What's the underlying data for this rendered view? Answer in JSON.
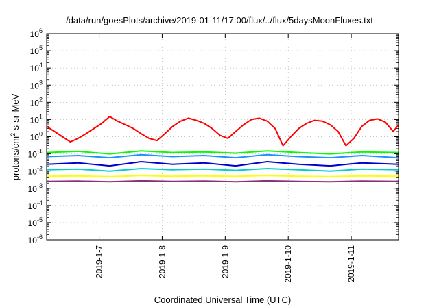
{
  "chart_data": {
    "type": "line",
    "title": "/data/run/goesPlots/archive/2019-01-11/17:00/flux/../flux/5daysMoonFluxes.txt",
    "xlabel": "Coordinated Universal Time (UTC)",
    "ylabel": {
      "prefix": "protons/cm",
      "sup": "2",
      "suffix": "-s-sr-MeV"
    },
    "y_scale": "log",
    "ylim": [
      1e-06,
      1000000.0
    ],
    "y_ticks": [
      {
        "base": "10",
        "exp": "-6",
        "value": 1e-06
      },
      {
        "base": "10",
        "exp": "-5",
        "value": 1e-05
      },
      {
        "base": "10",
        "exp": "-4",
        "value": 0.0001
      },
      {
        "base": "10",
        "exp": "-3",
        "value": 0.001
      },
      {
        "base": "10",
        "exp": "-2",
        "value": 0.01
      },
      {
        "base": "10",
        "exp": "-1",
        "value": 0.1
      },
      {
        "base": "10",
        "exp": "0",
        "value": 1
      },
      {
        "base": "10",
        "exp": "1",
        "value": 10
      },
      {
        "base": "10",
        "exp": "2",
        "value": 100
      },
      {
        "base": "10",
        "exp": "3",
        "value": 1000
      },
      {
        "base": "10",
        "exp": "4",
        "value": 10000
      },
      {
        "base": "10",
        "exp": "5",
        "value": 100000
      },
      {
        "base": "10",
        "exp": "6",
        "value": 1000000
      }
    ],
    "xlim": [
      "2019-01-06T04:00",
      "2019-01-11T18:00"
    ],
    "x_ticks": [
      {
        "label": "2019-1-7",
        "value": "2019-01-07T00:00"
      },
      {
        "label": "2019-1-8",
        "value": "2019-01-08T00:00"
      },
      {
        "label": "2019-1-9",
        "value": "2019-01-09T00:00"
      },
      {
        "label": "2019-1-10",
        "value": "2019-01-10T00:00"
      },
      {
        "label": "2019-1-11",
        "value": "2019-01-11T00:00"
      }
    ],
    "grid": true,
    "series": [
      {
        "color": "#ff0000",
        "x": [
          "2019-01-06T04:00",
          "2019-01-06T07:00",
          "2019-01-06T10:00",
          "2019-01-06T13:00",
          "2019-01-06T16:00",
          "2019-01-06T19:00",
          "2019-01-06T22:00",
          "2019-01-07T01:00",
          "2019-01-07T04:00",
          "2019-01-07T07:00",
          "2019-01-07T10:00",
          "2019-01-07T13:00",
          "2019-01-07T16:00",
          "2019-01-07T19:00",
          "2019-01-07T22:00",
          "2019-01-08T01:00",
          "2019-01-08T04:00",
          "2019-01-08T07:00",
          "2019-01-08T10:00",
          "2019-01-08T13:00",
          "2019-01-08T16:00",
          "2019-01-08T19:00",
          "2019-01-08T22:00",
          "2019-01-09T01:00",
          "2019-01-09T04:00",
          "2019-01-09T07:00",
          "2019-01-09T10:00",
          "2019-01-09T13:00",
          "2019-01-09T16:00",
          "2019-01-09T19:00",
          "2019-01-09T22:00",
          "2019-01-10T01:00",
          "2019-01-10T04:00",
          "2019-01-10T07:00",
          "2019-01-10T10:00",
          "2019-01-10T13:00",
          "2019-01-10T16:00",
          "2019-01-10T19:00",
          "2019-01-10T22:00",
          "2019-01-11T01:00",
          "2019-01-11T04:00",
          "2019-01-11T07:00",
          "2019-01-11T10:00",
          "2019-01-11T13:00",
          "2019-01-11T16:00",
          "2019-01-11T18:00"
        ],
        "values": [
          4,
          2,
          1,
          0.5,
          0.8,
          1.5,
          3,
          6,
          15,
          8,
          5,
          3,
          1.5,
          0.8,
          0.6,
          1.5,
          4,
          8,
          12,
          9,
          6,
          3,
          1.2,
          0.8,
          2,
          5,
          10,
          12,
          8,
          3,
          0.3,
          1,
          3,
          6,
          9,
          8,
          5,
          2,
          0.3,
          0.8,
          4,
          9,
          11,
          7,
          2,
          5
        ]
      },
      {
        "color": "#00ff00",
        "x": [
          "2019-01-06T04:00",
          "2019-01-06T16:00",
          "2019-01-07T04:00",
          "2019-01-07T16:00",
          "2019-01-08T04:00",
          "2019-01-08T16:00",
          "2019-01-09T04:00",
          "2019-01-09T16:00",
          "2019-01-10T04:00",
          "2019-01-10T16:00",
          "2019-01-11T04:00",
          "2019-01-11T18:00"
        ],
        "values": [
          0.12,
          0.14,
          0.1,
          0.15,
          0.12,
          0.13,
          0.11,
          0.15,
          0.12,
          0.1,
          0.13,
          0.12
        ]
      },
      {
        "color": "#1e90ff",
        "x": [
          "2019-01-06T04:00",
          "2019-01-06T16:00",
          "2019-01-07T04:00",
          "2019-01-07T16:00",
          "2019-01-08T04:00",
          "2019-01-08T16:00",
          "2019-01-09T04:00",
          "2019-01-09T16:00",
          "2019-01-10T04:00",
          "2019-01-10T16:00",
          "2019-01-11T04:00",
          "2019-01-11T18:00"
        ],
        "values": [
          0.07,
          0.08,
          0.06,
          0.09,
          0.07,
          0.08,
          0.06,
          0.09,
          0.07,
          0.06,
          0.08,
          0.06
        ]
      },
      {
        "color": "#0000cd",
        "x": [
          "2019-01-06T04:00",
          "2019-01-06T16:00",
          "2019-01-07T04:00",
          "2019-01-07T16:00",
          "2019-01-08T04:00",
          "2019-01-08T16:00",
          "2019-01-09T04:00",
          "2019-01-09T16:00",
          "2019-01-10T04:00",
          "2019-01-10T16:00",
          "2019-01-11T04:00",
          "2019-01-11T18:00"
        ],
        "values": [
          0.025,
          0.03,
          0.02,
          0.035,
          0.025,
          0.03,
          0.02,
          0.035,
          0.025,
          0.02,
          0.03,
          0.025
        ]
      },
      {
        "color": "#00ced1",
        "x": [
          "2019-01-06T04:00",
          "2019-01-06T16:00",
          "2019-01-07T04:00",
          "2019-01-07T16:00",
          "2019-01-08T04:00",
          "2019-01-08T16:00",
          "2019-01-09T04:00",
          "2019-01-09T16:00",
          "2019-01-10T04:00",
          "2019-01-10T16:00",
          "2019-01-11T04:00",
          "2019-01-11T18:00"
        ],
        "values": [
          0.012,
          0.013,
          0.01,
          0.014,
          0.012,
          0.013,
          0.011,
          0.014,
          0.012,
          0.01,
          0.013,
          0.012
        ]
      },
      {
        "color": "#ffff00",
        "x": [
          "2019-01-06T04:00",
          "2019-01-06T16:00",
          "2019-01-07T04:00",
          "2019-01-07T16:00",
          "2019-01-08T04:00",
          "2019-01-08T16:00",
          "2019-01-09T04:00",
          "2019-01-09T16:00",
          "2019-01-10T04:00",
          "2019-01-10T16:00",
          "2019-01-11T04:00",
          "2019-01-11T18:00"
        ],
        "values": [
          0.005,
          0.0052,
          0.0048,
          0.0055,
          0.005,
          0.0052,
          0.0049,
          0.0055,
          0.005,
          0.0048,
          0.0052,
          0.005
        ]
      },
      {
        "color": "#8b2f7a",
        "x": [
          "2019-01-06T04:00",
          "2019-01-06T16:00",
          "2019-01-07T04:00",
          "2019-01-07T16:00",
          "2019-01-08T04:00",
          "2019-01-08T16:00",
          "2019-01-09T04:00",
          "2019-01-09T16:00",
          "2019-01-10T04:00",
          "2019-01-10T16:00",
          "2019-01-11T04:00",
          "2019-01-11T18:00"
        ],
        "values": [
          0.0025,
          0.0026,
          0.0024,
          0.0027,
          0.0025,
          0.0026,
          0.0024,
          0.0027,
          0.0025,
          0.0024,
          0.0026,
          0.0025
        ]
      }
    ]
  }
}
